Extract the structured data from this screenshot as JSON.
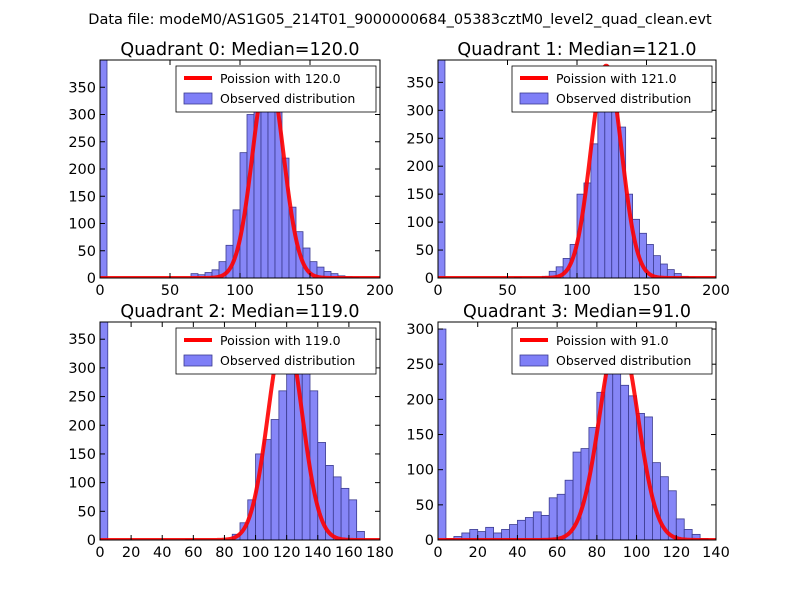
{
  "suptitle": "Data file: modeM0/AS1G05_214T01_9000000684_05383cztM0_level2_quad_clean.evt",
  "colors": {
    "bar_fill": "#7f7ff7",
    "bar_edge": "#3b3b8f",
    "line": "#ff0000",
    "frame": "#000000"
  },
  "chart_data": [
    {
      "type": "bar",
      "title": "Quadrant 0: Median=120.0",
      "xlabel": "",
      "ylabel": "",
      "xlim": [
        0,
        200
      ],
      "ylim": [
        0,
        400
      ],
      "xticks": [
        "0",
        "50",
        "100",
        "150",
        "200"
      ],
      "yticks": [
        "0",
        "50",
        "100",
        "150",
        "200",
        "250",
        "300",
        "350"
      ],
      "bin_width": 5,
      "x": [
        0,
        65,
        70,
        75,
        80,
        85,
        90,
        95,
        100,
        105,
        110,
        115,
        120,
        125,
        130,
        135,
        140,
        145,
        150,
        155,
        160,
        165,
        170,
        175,
        180
      ],
      "values": [
        400,
        8,
        6,
        10,
        15,
        30,
        60,
        125,
        230,
        300,
        350,
        380,
        360,
        330,
        220,
        130,
        85,
        55,
        30,
        20,
        12,
        8,
        4,
        2,
        1
      ],
      "poisson_mean": 120,
      "poisson_peak": 380,
      "legend": {
        "line": "Poission with 120.0",
        "bars": "Observed distribution",
        "position": "top-right"
      }
    },
    {
      "type": "bar",
      "title": "Quadrant 1: Median=121.0",
      "xlabel": "",
      "ylabel": "",
      "xlim": [
        0,
        200
      ],
      "ylim": [
        0,
        390
      ],
      "xticks": [
        "0",
        "50",
        "100",
        "150",
        "200"
      ],
      "yticks": [
        "0",
        "50",
        "100",
        "150",
        "200",
        "250",
        "300",
        "350"
      ],
      "bin_width": 5,
      "x": [
        0,
        55,
        75,
        80,
        85,
        90,
        95,
        100,
        105,
        110,
        115,
        120,
        125,
        130,
        135,
        140,
        145,
        150,
        155,
        160,
        165,
        170,
        175,
        180
      ],
      "values": [
        390,
        1,
        3,
        12,
        20,
        35,
        60,
        150,
        170,
        240,
        300,
        345,
        370,
        270,
        150,
        105,
        80,
        60,
        40,
        25,
        15,
        8,
        3,
        1
      ],
      "poisson_mean": 121,
      "poisson_peak": 380,
      "legend": {
        "line": "Poission with 121.0",
        "bars": "Observed distribution",
        "position": "top-right"
      }
    },
    {
      "type": "bar",
      "title": "Quadrant 2: Median=119.0",
      "xlabel": "",
      "ylabel": "",
      "xlim": [
        0,
        180
      ],
      "ylim": [
        0,
        380
      ],
      "xticks": [
        "0",
        "20",
        "40",
        "60",
        "80",
        "100",
        "120",
        "140",
        "160",
        "180"
      ],
      "yticks": [
        "0",
        "50",
        "100",
        "150",
        "200",
        "250",
        "300",
        "350"
      ],
      "bin_width": 5,
      "x": [
        0,
        55,
        85,
        90,
        95,
        100,
        105,
        110,
        115,
        120,
        125,
        130,
        135,
        140,
        145,
        150,
        155,
        160,
        165
      ],
      "values": [
        380,
        1,
        10,
        30,
        70,
        150,
        175,
        210,
        260,
        340,
        310,
        300,
        260,
        170,
        130,
        110,
        90,
        70,
        15
      ],
      "poisson_mean": 119,
      "poisson_peak": 365,
      "legend": {
        "line": "Poission with 119.0",
        "bars": "Observed distribution",
        "position": "top-right"
      }
    },
    {
      "type": "bar",
      "title": "Quadrant 3: Median=91.0",
      "xlabel": "",
      "ylabel": "",
      "xlim": [
        0,
        140
      ],
      "ylim": [
        0,
        310
      ],
      "xticks": [
        "0",
        "20",
        "40",
        "60",
        "80",
        "100",
        "120",
        "140"
      ],
      "yticks": [
        "0",
        "50",
        "100",
        "150",
        "200",
        "250",
        "300"
      ],
      "bin_width": 4,
      "x": [
        0,
        4,
        8,
        12,
        16,
        20,
        24,
        28,
        32,
        36,
        40,
        44,
        48,
        52,
        56,
        60,
        64,
        68,
        72,
        76,
        80,
        84,
        88,
        92,
        96,
        100,
        104,
        108,
        112,
        116,
        120,
        124,
        128,
        132
      ],
      "values": [
        300,
        2,
        5,
        10,
        15,
        12,
        18,
        10,
        15,
        22,
        28,
        32,
        40,
        35,
        60,
        65,
        85,
        125,
        130,
        160,
        210,
        260,
        275,
        220,
        205,
        180,
        175,
        110,
        90,
        70,
        30,
        15,
        8,
        2
      ],
      "poisson_mean": 91,
      "poisson_peak": 295,
      "legend": {
        "line": "Poission with 91.0",
        "bars": "Observed distribution",
        "position": "top-right"
      }
    }
  ]
}
